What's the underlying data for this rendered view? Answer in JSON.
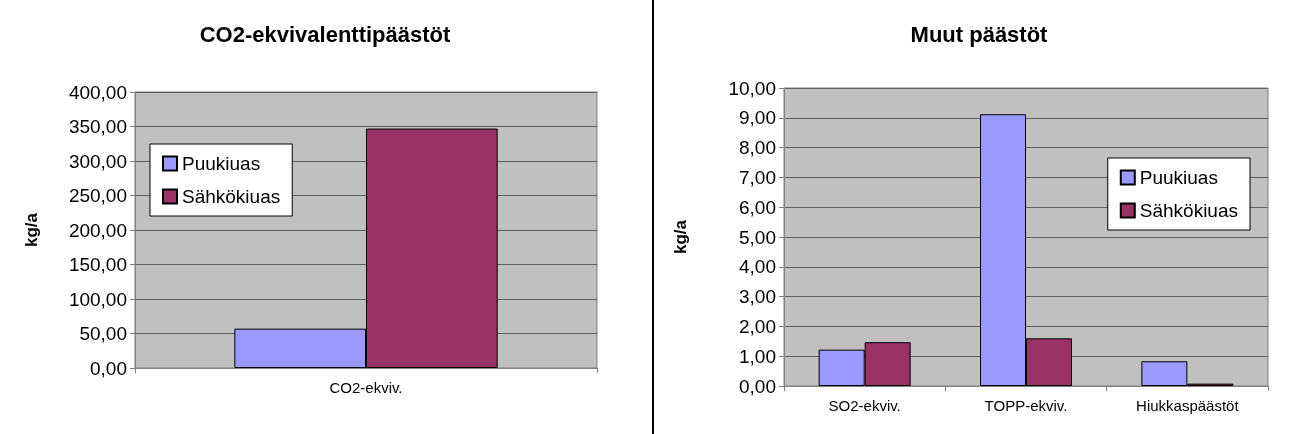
{
  "chart_data": [
    {
      "type": "bar",
      "title": "CO2-ekvivalenttipäästöt",
      "ylabel": "kg/a",
      "categories": [
        "CO2-ekviv."
      ],
      "series": [
        {
          "name": "Puukiuas",
          "color": "#9999ff",
          "values": [
            57
          ]
        },
        {
          "name": "Sähkökiuas",
          "color": "#993366",
          "values": [
            347
          ]
        }
      ],
      "ylim": [
        0,
        400
      ],
      "yticks": [
        {
          "value": 0,
          "label": "0,00"
        },
        {
          "value": 50,
          "label": "50,00"
        },
        {
          "value": 100,
          "label": "100,00"
        },
        {
          "value": 150,
          "label": "150,00"
        },
        {
          "value": 200,
          "label": "200,00"
        },
        {
          "value": 250,
          "label": "250,00"
        },
        {
          "value": 300,
          "label": "300,00"
        },
        {
          "value": 350,
          "label": "350,00"
        },
        {
          "value": 400,
          "label": "400,00"
        }
      ],
      "grid": "y",
      "legend": "top left"
    },
    {
      "type": "bar",
      "title": "Muut päästöt",
      "ylabel": "kg/a",
      "categories": [
        "SO2-ekviv.",
        "TOPP-ekviv.",
        "Hiukkaspäästöt"
      ],
      "series": [
        {
          "name": "Puukiuas",
          "color": "#9999ff",
          "values": [
            1.22,
            9.12,
            0.83
          ]
        },
        {
          "name": "Sähkökiuas",
          "color": "#993366",
          "values": [
            1.47,
            1.6,
            0.08
          ]
        }
      ],
      "ylim": [
        0,
        10
      ],
      "yticks": [
        {
          "value": 0,
          "label": "0,00"
        },
        {
          "value": 1,
          "label": "1,00"
        },
        {
          "value": 2,
          "label": "2,00"
        },
        {
          "value": 3,
          "label": "3,00"
        },
        {
          "value": 4,
          "label": "4,00"
        },
        {
          "value": 5,
          "label": "5,00"
        },
        {
          "value": 6,
          "label": "6,00"
        },
        {
          "value": 7,
          "label": "7,00"
        },
        {
          "value": 8,
          "label": "8,00"
        },
        {
          "value": 9,
          "label": "9,00"
        },
        {
          "value": 10,
          "label": "10,00"
        }
      ],
      "grid": "y",
      "legend": "right"
    }
  ]
}
